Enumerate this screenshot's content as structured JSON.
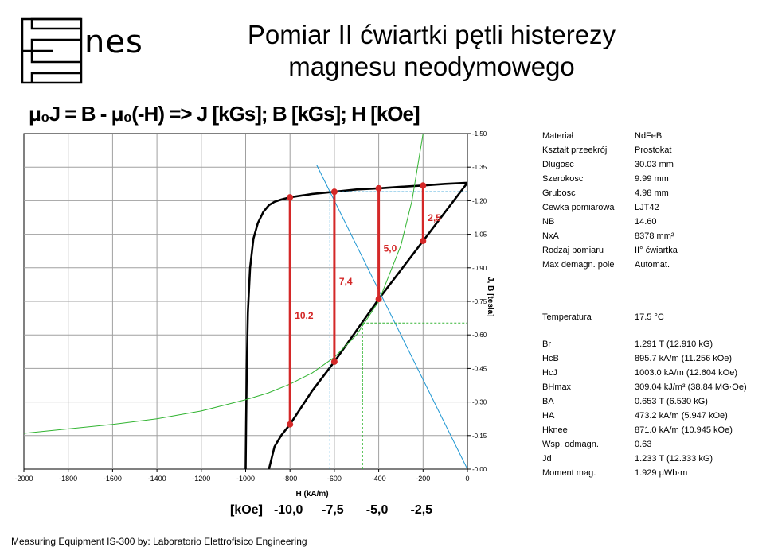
{
  "logo": {
    "text": "nes"
  },
  "title": {
    "line1": "Pomiar II ćwiartki pętli histerezy",
    "line2": "magnesu neodymowego"
  },
  "formula": "μ₀J = B - μ₀(-H) => J [kGs]; B [kGs]; H [kOe]",
  "chart_data": {
    "type": "line",
    "xlabel": "H (kA/m)",
    "ylabel": "J, B [tesla]",
    "xlim": [
      -2000,
      0
    ],
    "ylim": [
      0,
      1.5
    ],
    "x_ticks": [
      "-2000",
      "-1800",
      "-1600",
      "-1400",
      "-1200",
      "-1000",
      "-800",
      "-600",
      "-400",
      "-200",
      "0"
    ],
    "y_ticks": [
      "0.00",
      "0.15",
      "0.30",
      "0.45",
      "0.60",
      "0.75",
      "0.90",
      "1.05",
      "1.20",
      "1.35",
      "1.50"
    ],
    "grid": true,
    "series": [
      {
        "name": "",
        "color": "#000000",
        "x": [
          -1000,
          -998,
          -995,
          -990,
          -980,
          -965,
          -945,
          -920,
          -895,
          -870,
          -840,
          -800,
          -700,
          -600,
          -500,
          -400,
          -300,
          -200,
          -100,
          0
        ],
        "y": [
          0.0,
          0.2,
          0.45,
          0.7,
          0.9,
          1.03,
          1.1,
          1.15,
          1.18,
          1.195,
          1.205,
          1.215,
          1.23,
          1.24,
          1.25,
          1.255,
          1.262,
          1.268,
          1.275,
          1.28
        ]
      },
      {
        "name": "",
        "color": "#000000",
        "x": [
          -895,
          -870,
          -840,
          -800,
          -760,
          -700,
          -600,
          -500,
          -400,
          -300,
          -200,
          -100,
          0
        ],
        "y": [
          0.0,
          0.1,
          0.15,
          0.2,
          0.26,
          0.35,
          0.48,
          0.62,
          0.76,
          0.89,
          1.02,
          1.15,
          1.28
        ]
      },
      {
        "name": "",
        "color": "#32b432",
        "x": [
          -2000,
          -1800,
          -1600,
          -1400,
          -1200,
          -1000,
          -900,
          -800,
          -700,
          -600,
          -500,
          -400,
          -300,
          -250,
          -200
        ],
        "y": [
          0.16,
          0.18,
          0.2,
          0.225,
          0.26,
          0.31,
          0.34,
          0.38,
          0.43,
          0.5,
          0.6,
          0.75,
          1.0,
          1.2,
          1.5
        ]
      },
      {
        "name": "",
        "color": "#1e96d2",
        "x": [
          -680,
          0
        ],
        "y": [
          1.36,
          0.0
        ]
      },
      {
        "name": "",
        "color": "#1e96d2",
        "x": [
          -620,
          -620
        ],
        "y": [
          0.0,
          1.24
        ],
        "dashed": true
      },
      {
        "name": "",
        "color": "#1e96d2",
        "x": [
          -620,
          0
        ],
        "y": [
          1.24,
          1.24
        ],
        "dashed": true
      },
      {
        "name": "",
        "color": "#32b432",
        "x": [
          -473,
          -473
        ],
        "y": [
          0.0,
          0.653
        ],
        "dashed": true
      },
      {
        "name": "",
        "color": "#32b432",
        "x": [
          -473,
          0
        ],
        "y": [
          0.653,
          0.653
        ],
        "dashed": true
      }
    ],
    "annotations": [
      {
        "x": -800,
        "y_low": 0.2,
        "y_high": 1.215,
        "label": "10,2"
      },
      {
        "x": -600,
        "y_low": 0.48,
        "y_high": 1.24,
        "label": "7,4"
      },
      {
        "x": -400,
        "y_low": 0.76,
        "y_high": 1.255,
        "label": "5,0"
      },
      {
        "x": -200,
        "y_low": 1.02,
        "y_high": 1.268,
        "label": "2,5"
      }
    ],
    "kOe_ticks": {
      "label": "[kOe]",
      "values": [
        {
          "x": -800,
          "text": "-10,0"
        },
        {
          "x": -600,
          "text": "-7,5"
        },
        {
          "x": -400,
          "text": "-5,0"
        },
        {
          "x": -200,
          "text": "-2,5"
        }
      ]
    }
  },
  "info_top": [
    {
      "k": "Materiał",
      "v": "NdFeB"
    },
    {
      "k": "Kształt przeekrój",
      "v": "Prostokat"
    },
    {
      "k": "Dlugosc",
      "v": "30.03 mm"
    },
    {
      "k": "Szerokosc",
      "v": "9.99 mm"
    },
    {
      "k": "Grubosc",
      "v": "4.98 mm"
    },
    {
      "k": "Cewka pomiarowa",
      "v": "LJT42"
    },
    {
      "k": "NB",
      "v": "14.60"
    },
    {
      "k": "NxA",
      "v": "8378 mm²"
    },
    {
      "k": "Rodzaj pomiaru",
      "v": "II° ćwiartka"
    },
    {
      "k": "Max demagn. pole",
      "v": "Automat."
    }
  ],
  "info_temp": [
    {
      "k": "Temperatura",
      "v": "17.5 °C"
    }
  ],
  "info_results": [
    {
      "k": "Br",
      "v": "1.291 T (12.910 kG)"
    },
    {
      "k": "HcB",
      "v": "895.7 kA/m (11.256 kOe)"
    },
    {
      "k": "HcJ",
      "v": "1003.0 kA/m (12.604 kOe)"
    },
    {
      "k": "BHmax",
      "v": "309.04 kJ/m³ (38.84 MG·Oe)"
    },
    {
      "k": "BA",
      "v": "0.653 T (6.530 kG)"
    },
    {
      "k": "HA",
      "v": "473.2 kA/m (5.947 kOe)"
    },
    {
      "k": "Hknee",
      "v": "871.0 kA/m (10.945 kOe)"
    },
    {
      "k": "Wsp. odmagn.",
      "v": "0.63"
    },
    {
      "k": "Jd",
      "v": "1.233 T (12.333 kG)"
    },
    {
      "k": "Moment mag.",
      "v": "1.929 μWb·m"
    }
  ],
  "footer": "Measuring Equipment IS-300 by: Laboratorio Elettrofisico Engineering"
}
